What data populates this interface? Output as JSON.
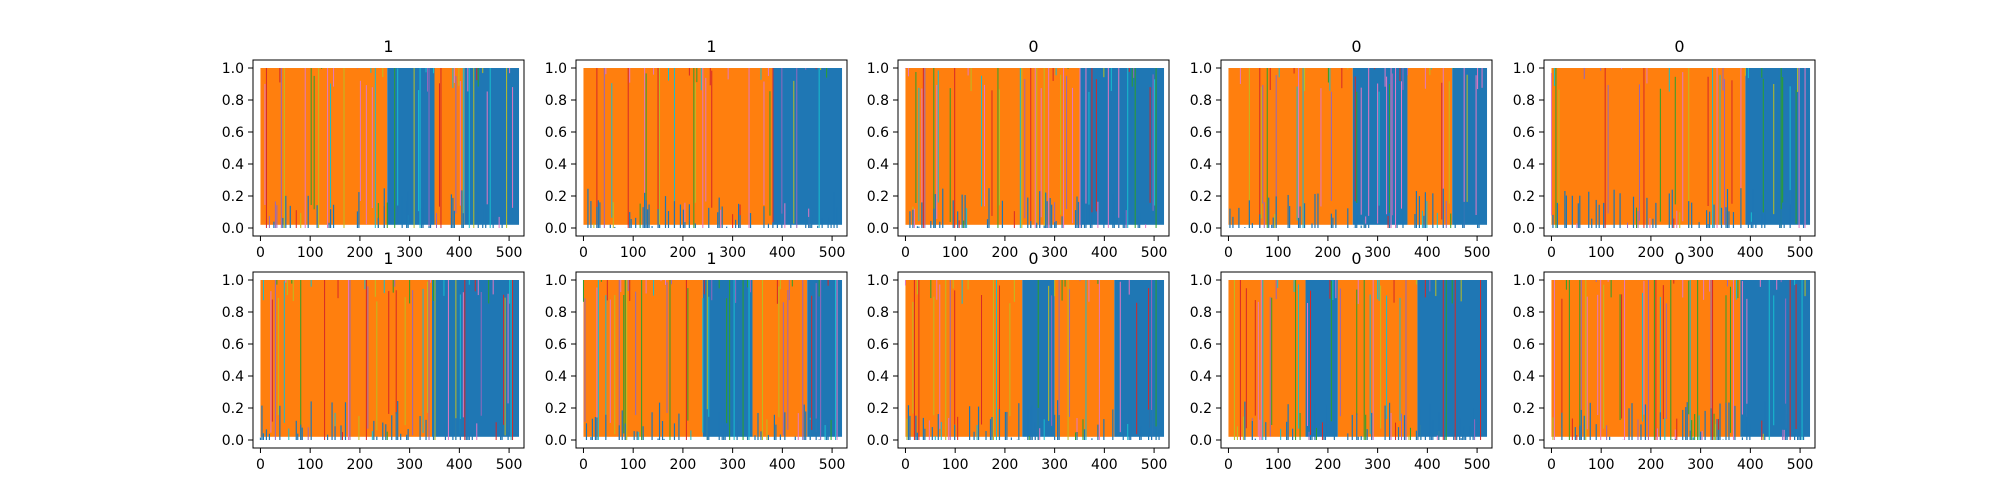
{
  "figure": {
    "background": "#ffffff"
  },
  "chart_data": [
    {
      "type": "line",
      "title": "1",
      "xlim": [
        -15,
        530
      ],
      "ylim": [
        -0.05,
        1.05
      ],
      "x_ticks": [
        0,
        100,
        200,
        300,
        400,
        500
      ],
      "y_ticks": [
        "0.0",
        "0.2",
        "0.4",
        "0.6",
        "0.8",
        "1.0"
      ],
      "grid": false,
      "dominant_series": [
        {
          "color": "#ff7f0e",
          "x_range": [
            0,
            255
          ]
        },
        {
          "color": "#1f77b4",
          "x_range": [
            255,
            350
          ]
        },
        {
          "color": "#ff7f0e",
          "x_range": [
            350,
            410
          ]
        },
        {
          "color": "#1f77b4",
          "x_range": [
            410,
            520
          ]
        }
      ]
    },
    {
      "type": "line",
      "title": "1",
      "xlim": [
        -15,
        530
      ],
      "ylim": [
        -0.05,
        1.05
      ],
      "x_ticks": [
        0,
        100,
        200,
        300,
        400,
        500
      ],
      "y_ticks": [
        "0.0",
        "0.2",
        "0.4",
        "0.6",
        "0.8",
        "1.0"
      ],
      "grid": false,
      "dominant_series": [
        {
          "color": "#ff7f0e",
          "x_range": [
            0,
            380
          ]
        },
        {
          "color": "#1f77b4",
          "x_range": [
            380,
            520
          ]
        }
      ]
    },
    {
      "type": "line",
      "title": "0",
      "xlim": [
        -15,
        530
      ],
      "ylim": [
        -0.05,
        1.05
      ],
      "x_ticks": [
        0,
        100,
        200,
        300,
        400,
        500
      ],
      "y_ticks": [
        "0.0",
        "0.2",
        "0.4",
        "0.6",
        "0.8",
        "1.0"
      ],
      "grid": false,
      "dominant_series": [
        {
          "color": "#ff7f0e",
          "x_range": [
            0,
            350
          ]
        },
        {
          "color": "#1f77b4",
          "x_range": [
            350,
            520
          ]
        }
      ]
    },
    {
      "type": "line",
      "title": "0",
      "xlim": [
        -15,
        530
      ],
      "ylim": [
        -0.05,
        1.05
      ],
      "x_ticks": [
        0,
        100,
        200,
        300,
        400,
        500
      ],
      "y_ticks": [
        "0.0",
        "0.2",
        "0.4",
        "0.6",
        "0.8",
        "1.0"
      ],
      "grid": false,
      "dominant_series": [
        {
          "color": "#ff7f0e",
          "x_range": [
            0,
            250
          ]
        },
        {
          "color": "#1f77b4",
          "x_range": [
            250,
            360
          ]
        },
        {
          "color": "#ff7f0e",
          "x_range": [
            360,
            450
          ]
        },
        {
          "color": "#1f77b4",
          "x_range": [
            450,
            520
          ]
        }
      ]
    },
    {
      "type": "line",
      "title": "0",
      "xlim": [
        -15,
        530
      ],
      "ylim": [
        -0.05,
        1.05
      ],
      "x_ticks": [
        0,
        100,
        200,
        300,
        400,
        500
      ],
      "y_ticks": [
        "0.0",
        "0.2",
        "0.4",
        "0.6",
        "0.8",
        "1.0"
      ],
      "grid": false,
      "dominant_series": [
        {
          "color": "#ff7f0e",
          "x_range": [
            0,
            390
          ]
        },
        {
          "color": "#1f77b4",
          "x_range": [
            390,
            520
          ]
        }
      ]
    },
    {
      "type": "line",
      "title": "1",
      "xlim": [
        -15,
        530
      ],
      "ylim": [
        -0.05,
        1.05
      ],
      "x_ticks": [
        0,
        100,
        200,
        300,
        400,
        500
      ],
      "y_ticks": [
        "0.0",
        "0.2",
        "0.4",
        "0.6",
        "0.8",
        "1.0"
      ],
      "grid": false,
      "dominant_series": [
        {
          "color": "#ff7f0e",
          "x_range": [
            0,
            345
          ]
        },
        {
          "color": "#1f77b4",
          "x_range": [
            345,
            520
          ]
        }
      ]
    },
    {
      "type": "line",
      "title": "1",
      "xlim": [
        -15,
        530
      ],
      "ylim": [
        -0.05,
        1.05
      ],
      "x_ticks": [
        0,
        100,
        200,
        300,
        400,
        500
      ],
      "y_ticks": [
        "0.0",
        "0.2",
        "0.4",
        "0.6",
        "0.8",
        "1.0"
      ],
      "grid": false,
      "dominant_series": [
        {
          "color": "#ff7f0e",
          "x_range": [
            0,
            240
          ]
        },
        {
          "color": "#1f77b4",
          "x_range": [
            240,
            340
          ]
        },
        {
          "color": "#ff7f0e",
          "x_range": [
            340,
            450
          ]
        },
        {
          "color": "#1f77b4",
          "x_range": [
            450,
            520
          ]
        }
      ]
    },
    {
      "type": "line",
      "title": "0",
      "xlim": [
        -15,
        530
      ],
      "ylim": [
        -0.05,
        1.05
      ],
      "x_ticks": [
        0,
        100,
        200,
        300,
        400,
        500
      ],
      "y_ticks": [
        "0.0",
        "0.2",
        "0.4",
        "0.6",
        "0.8",
        "1.0"
      ],
      "grid": false,
      "dominant_series": [
        {
          "color": "#ff7f0e",
          "x_range": [
            0,
            235
          ]
        },
        {
          "color": "#1f77b4",
          "x_range": [
            235,
            300
          ]
        },
        {
          "color": "#ff7f0e",
          "x_range": [
            300,
            420
          ]
        },
        {
          "color": "#1f77b4",
          "x_range": [
            420,
            520
          ]
        }
      ]
    },
    {
      "type": "line",
      "title": "0",
      "xlim": [
        -15,
        530
      ],
      "ylim": [
        -0.05,
        1.05
      ],
      "x_ticks": [
        0,
        100,
        200,
        300,
        400,
        500
      ],
      "y_ticks": [
        "0.0",
        "0.2",
        "0.4",
        "0.6",
        "0.8",
        "1.0"
      ],
      "grid": false,
      "dominant_series": [
        {
          "color": "#ff7f0e",
          "x_range": [
            0,
            155
          ]
        },
        {
          "color": "#1f77b4",
          "x_range": [
            155,
            220
          ]
        },
        {
          "color": "#ff7f0e",
          "x_range": [
            220,
            380
          ]
        },
        {
          "color": "#1f77b4",
          "x_range": [
            380,
            520
          ]
        }
      ]
    },
    {
      "type": "line",
      "title": "0",
      "xlim": [
        -15,
        530
      ],
      "ylim": [
        -0.05,
        1.05
      ],
      "x_ticks": [
        0,
        100,
        200,
        300,
        400,
        500
      ],
      "y_ticks": [
        "0.0",
        "0.2",
        "0.4",
        "0.6",
        "0.8",
        "1.0"
      ],
      "grid": false,
      "dominant_series": [
        {
          "color": "#ff7f0e",
          "x_range": [
            0,
            380
          ]
        },
        {
          "color": "#1f77b4",
          "x_range": [
            380,
            520
          ]
        }
      ]
    }
  ]
}
